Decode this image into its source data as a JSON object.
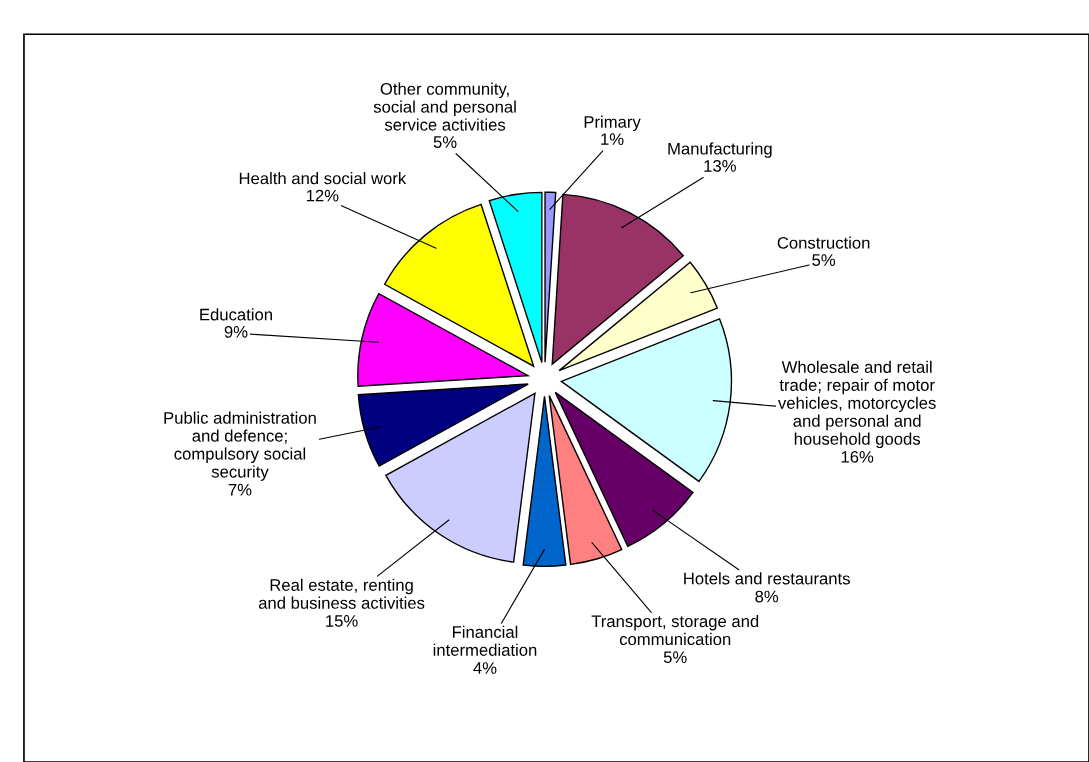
{
  "chart_data": {
    "type": "pie",
    "categories": [
      "Primary",
      "Manufacturing",
      "Construction",
      "Wholesale and retail\ntrade; repair of motor\nvehicles, motorcycles\nand personal and\nhousehold goods",
      "Hotels and restaurants",
      "Transport, storage and\ncommunication",
      "Financial\nintermediation",
      "Real estate, renting\nand business activities",
      "Public administration\nand defence;\ncompulsory social\nsecurity",
      "Education",
      "Health and social work",
      "Other community,\nsocial and personal\nservice activities"
    ],
    "values": [
      1,
      13,
      5,
      16,
      8,
      5,
      4,
      15,
      7,
      9,
      12,
      5
    ],
    "colors": [
      "#9999ff",
      "#993366",
      "#ffffcc",
      "#ccffff",
      "#660066",
      "#ff8080",
      "#0066cc",
      "#ccccff",
      "#000080",
      "#ff00ff",
      "#ffff00",
      "#00ffff"
    ],
    "value_labels": [
      "1%",
      "13%",
      "5%",
      "16%",
      "8%",
      "5%",
      "4%",
      "15%",
      "7%",
      "9%",
      "12%",
      "5%"
    ],
    "legend": false
  }
}
